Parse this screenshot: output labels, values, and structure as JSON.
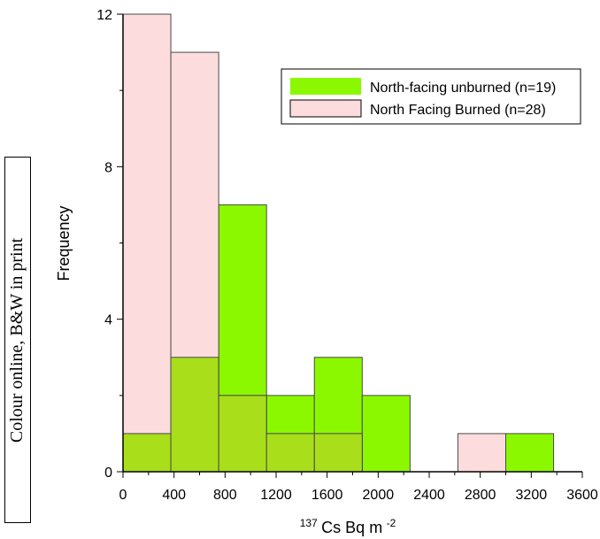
{
  "side_note": "Colour online, B&W in print",
  "chart_data": {
    "type": "histogram",
    "xlabel": {
      "superscript": "137",
      "main": "Cs Bq m",
      "exponent": "-2"
    },
    "ylabel": "Frequency",
    "xlim": [
      0,
      3600
    ],
    "ylim": [
      0,
      12
    ],
    "x_ticks": [
      0,
      400,
      800,
      1200,
      1600,
      2000,
      2400,
      2800,
      3200,
      3600
    ],
    "y_ticks": [
      0,
      4,
      8,
      12
    ],
    "bin_edges": [
      0,
      375,
      750,
      1125,
      1500,
      1875,
      2250,
      2625,
      3000,
      3375
    ],
    "legend_position": "top-right",
    "series": [
      {
        "name": "North-facing unburned (n=19)",
        "color": "#8cf800",
        "counts": [
          1,
          3,
          7,
          2,
          3,
          2,
          0,
          0,
          1
        ]
      },
      {
        "name": "North Facing Burned (n=28)",
        "color": "#fcdcdc",
        "counts": [
          12,
          11,
          2,
          1,
          1,
          0,
          0,
          1,
          0
        ]
      }
    ],
    "overlap_color": "#a9de1a"
  }
}
